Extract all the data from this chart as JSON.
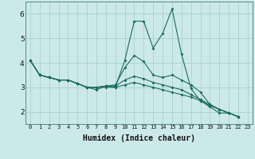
{
  "title": "",
  "xlabel": "Humidex (Indice chaleur)",
  "xlim": [
    -0.5,
    23.5
  ],
  "ylim": [
    1.5,
    6.5
  ],
  "yticks": [
    2,
    3,
    4,
    5,
    6
  ],
  "xticks": [
    0,
    1,
    2,
    3,
    4,
    5,
    6,
    7,
    8,
    9,
    10,
    11,
    12,
    13,
    14,
    15,
    16,
    17,
    18,
    19,
    20,
    21,
    22,
    23
  ],
  "background_color": "#cce9e9",
  "grid_color": "#aacfcf",
  "line_color": "#1a6b60",
  "series": [
    [
      4.1,
      3.5,
      3.4,
      3.3,
      3.3,
      3.15,
      3.0,
      2.9,
      3.05,
      3.0,
      4.1,
      5.7,
      5.7,
      4.6,
      5.2,
      6.2,
      4.35,
      2.95,
      2.45,
      2.2,
      1.95,
      1.95,
      1.8
    ],
    [
      4.1,
      3.5,
      3.4,
      3.3,
      3.3,
      3.15,
      3.0,
      3.0,
      3.05,
      3.1,
      3.8,
      4.3,
      4.05,
      3.5,
      3.4,
      3.5,
      3.3,
      3.1,
      2.8,
      2.3,
      2.1,
      1.95,
      1.8
    ],
    [
      4.1,
      3.5,
      3.4,
      3.3,
      3.3,
      3.15,
      3.0,
      3.0,
      3.05,
      3.05,
      3.3,
      3.45,
      3.35,
      3.2,
      3.1,
      3.0,
      2.9,
      2.7,
      2.5,
      2.3,
      2.1,
      1.95,
      1.8
    ],
    [
      4.1,
      3.5,
      3.4,
      3.3,
      3.3,
      3.15,
      3.0,
      3.0,
      3.0,
      3.0,
      3.1,
      3.2,
      3.1,
      3.0,
      2.9,
      2.8,
      2.7,
      2.6,
      2.45,
      2.25,
      2.1,
      1.95,
      1.8
    ]
  ]
}
